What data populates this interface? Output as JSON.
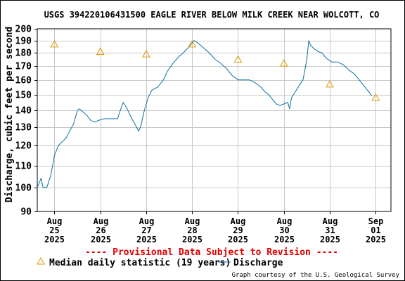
{
  "chart_data": {
    "type": "line",
    "title": "USGS 394220106431500 EAGLE RIVER BELOW MILK CREEK NEAR WOLCOTT, CO",
    "ylabel": "Discharge, cubic feet per second",
    "xlabel": "",
    "y_scale": "log",
    "ylim": [
      90,
      200
    ],
    "y_ticks": [
      90,
      100,
      110,
      120,
      130,
      140,
      150,
      160,
      170,
      180,
      190,
      200
    ],
    "xlim": [
      "2025-08-24T15:00",
      "2025-09-01T08:00"
    ],
    "x_ticks": [
      {
        "date": "2025-08-25",
        "month": "Aug",
        "day": "25",
        "year": "2025"
      },
      {
        "date": "2025-08-26",
        "month": "Aug",
        "day": "26",
        "year": "2025"
      },
      {
        "date": "2025-08-27",
        "month": "Aug",
        "day": "27",
        "year": "2025"
      },
      {
        "date": "2025-08-28",
        "month": "Aug",
        "day": "28",
        "year": "2025"
      },
      {
        "date": "2025-08-29",
        "month": "Aug",
        "day": "29",
        "year": "2025"
      },
      {
        "date": "2025-08-30",
        "month": "Aug",
        "day": "30",
        "year": "2025"
      },
      {
        "date": "2025-08-31",
        "month": "Aug",
        "day": "31",
        "year": "2025"
      },
      {
        "date": "2025-09-01",
        "month": "Sep",
        "day": "01",
        "year": "2025"
      }
    ],
    "grid": true,
    "legend_position": "bottom",
    "series": [
      {
        "name": "Discharge",
        "color": "#0a6fa0",
        "style": "line",
        "points": [
          {
            "x": "2025-08-24T15:00",
            "y": 100
          },
          {
            "x": "2025-08-24T16:00",
            "y": 102
          },
          {
            "x": "2025-08-24T17:00",
            "y": 104
          },
          {
            "x": "2025-08-24T18:00",
            "y": 100
          },
          {
            "x": "2025-08-24T20:00",
            "y": 100
          },
          {
            "x": "2025-08-24T22:00",
            "y": 105
          },
          {
            "x": "2025-08-25T00:00",
            "y": 115
          },
          {
            "x": "2025-08-25T02:00",
            "y": 120
          },
          {
            "x": "2025-08-25T04:00",
            "y": 122
          },
          {
            "x": "2025-08-25T06:00",
            "y": 124
          },
          {
            "x": "2025-08-25T08:00",
            "y": 128
          },
          {
            "x": "2025-08-25T10:00",
            "y": 132
          },
          {
            "x": "2025-08-25T12:00",
            "y": 140
          },
          {
            "x": "2025-08-25T13:00",
            "y": 141
          },
          {
            "x": "2025-08-25T15:00",
            "y": 139
          },
          {
            "x": "2025-08-25T17:00",
            "y": 137
          },
          {
            "x": "2025-08-25T19:00",
            "y": 134
          },
          {
            "x": "2025-08-25T21:00",
            "y": 133
          },
          {
            "x": "2025-08-25T23:00",
            "y": 134
          },
          {
            "x": "2025-08-26T02:00",
            "y": 135
          },
          {
            "x": "2025-08-26T06:00",
            "y": 135
          },
          {
            "x": "2025-08-26T09:00",
            "y": 135
          },
          {
            "x": "2025-08-26T11:00",
            "y": 142
          },
          {
            "x": "2025-08-26T12:00",
            "y": 145
          },
          {
            "x": "2025-08-26T14:00",
            "y": 141
          },
          {
            "x": "2025-08-26T16:00",
            "y": 136
          },
          {
            "x": "2025-08-26T18:00",
            "y": 132
          },
          {
            "x": "2025-08-26T20:00",
            "y": 128
          },
          {
            "x": "2025-08-26T21:00",
            "y": 130
          },
          {
            "x": "2025-08-26T23:00",
            "y": 140
          },
          {
            "x": "2025-08-27T01:00",
            "y": 148
          },
          {
            "x": "2025-08-27T03:00",
            "y": 153
          },
          {
            "x": "2025-08-27T06:00",
            "y": 155
          },
          {
            "x": "2025-08-27T09:00",
            "y": 160
          },
          {
            "x": "2025-08-27T11:00",
            "y": 166
          },
          {
            "x": "2025-08-27T14:00",
            "y": 172
          },
          {
            "x": "2025-08-27T17:00",
            "y": 177
          },
          {
            "x": "2025-08-27T20:00",
            "y": 181
          },
          {
            "x": "2025-08-27T23:00",
            "y": 186
          },
          {
            "x": "2025-08-28T01:00",
            "y": 190
          },
          {
            "x": "2025-08-28T03:00",
            "y": 188
          },
          {
            "x": "2025-08-28T06:00",
            "y": 184
          },
          {
            "x": "2025-08-28T09:00",
            "y": 180
          },
          {
            "x": "2025-08-28T12:00",
            "y": 175
          },
          {
            "x": "2025-08-28T15:00",
            "y": 172
          },
          {
            "x": "2025-08-28T18:00",
            "y": 168
          },
          {
            "x": "2025-08-28T21:00",
            "y": 163
          },
          {
            "x": "2025-08-29T00:00",
            "y": 160
          },
          {
            "x": "2025-08-29T03:00",
            "y": 160
          },
          {
            "x": "2025-08-29T06:00",
            "y": 160
          },
          {
            "x": "2025-08-29T09:00",
            "y": 158
          },
          {
            "x": "2025-08-29T12:00",
            "y": 155
          },
          {
            "x": "2025-08-29T14:00",
            "y": 152
          },
          {
            "x": "2025-08-29T16:00",
            "y": 150
          },
          {
            "x": "2025-08-29T18:00",
            "y": 147
          },
          {
            "x": "2025-08-29T20:00",
            "y": 144
          },
          {
            "x": "2025-08-29T22:00",
            "y": 143
          },
          {
            "x": "2025-08-30T00:00",
            "y": 144
          },
          {
            "x": "2025-08-30T02:00",
            "y": 145
          },
          {
            "x": "2025-08-30T03:00",
            "y": 141
          },
          {
            "x": "2025-08-30T04:00",
            "y": 148
          },
          {
            "x": "2025-08-30T06:00",
            "y": 152
          },
          {
            "x": "2025-08-30T08:00",
            "y": 156
          },
          {
            "x": "2025-08-30T10:00",
            "y": 160
          },
          {
            "x": "2025-08-30T12:00",
            "y": 175
          },
          {
            "x": "2025-08-30T13:00",
            "y": 190
          },
          {
            "x": "2025-08-30T14:00",
            "y": 186
          },
          {
            "x": "2025-08-30T16:00",
            "y": 183
          },
          {
            "x": "2025-08-30T18:00",
            "y": 181
          },
          {
            "x": "2025-08-30T20:00",
            "y": 180
          },
          {
            "x": "2025-08-30T22:00",
            "y": 176
          },
          {
            "x": "2025-08-31T01:00",
            "y": 173
          },
          {
            "x": "2025-08-31T04:00",
            "y": 173
          },
          {
            "x": "2025-08-31T07:00",
            "y": 171
          },
          {
            "x": "2025-08-31T10:00",
            "y": 167
          },
          {
            "x": "2025-08-31T13:00",
            "y": 164
          },
          {
            "x": "2025-08-31T16:00",
            "y": 159
          },
          {
            "x": "2025-08-31T19:00",
            "y": 154
          },
          {
            "x": "2025-08-31T21:00",
            "y": 151
          },
          {
            "x": "2025-08-31T22:00",
            "y": 149
          }
        ]
      },
      {
        "name": "Median daily statistic (19 years)",
        "color": "#e09a00",
        "style": "triangle-marker",
        "points": [
          {
            "x": "2025-08-25T00:00",
            "y": 187
          },
          {
            "x": "2025-08-26T00:00",
            "y": 181
          },
          {
            "x": "2025-08-27T00:00",
            "y": 179
          },
          {
            "x": "2025-08-28T00:00",
            "y": 187
          },
          {
            "x": "2025-08-29T00:00",
            "y": 175
          },
          {
            "x": "2025-08-30T00:00",
            "y": 172
          },
          {
            "x": "2025-08-31T00:00",
            "y": 157
          },
          {
            "x": "2025-09-01T00:00",
            "y": 148
          }
        ]
      }
    ]
  },
  "notice": "---- Provisional Data Subject to Revision ----",
  "legend": {
    "median_label": "Median daily statistic (19 years)",
    "discharge_label": "Discharge"
  },
  "credit": "Graph courtesy of the U.S. Geological Survey"
}
